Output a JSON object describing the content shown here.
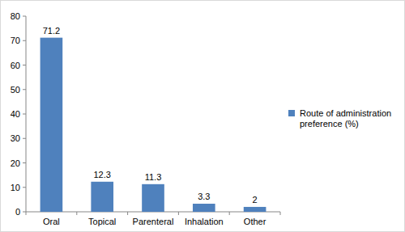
{
  "chart_data": {
    "type": "bar",
    "categories": [
      "Oral",
      "Topical",
      "Parenteral",
      "Inhalation",
      "Other"
    ],
    "series": [
      {
        "name": "Route of administration preference (%)",
        "color": "#4f81bd",
        "values": [
          71.2,
          12.3,
          11.3,
          3.3,
          2
        ]
      }
    ],
    "ylim": [
      0,
      80
    ],
    "yticks": [
      0,
      10,
      20,
      30,
      40,
      50,
      60,
      70,
      80
    ],
    "grid": false,
    "legend": "right",
    "data_labels": true
  }
}
